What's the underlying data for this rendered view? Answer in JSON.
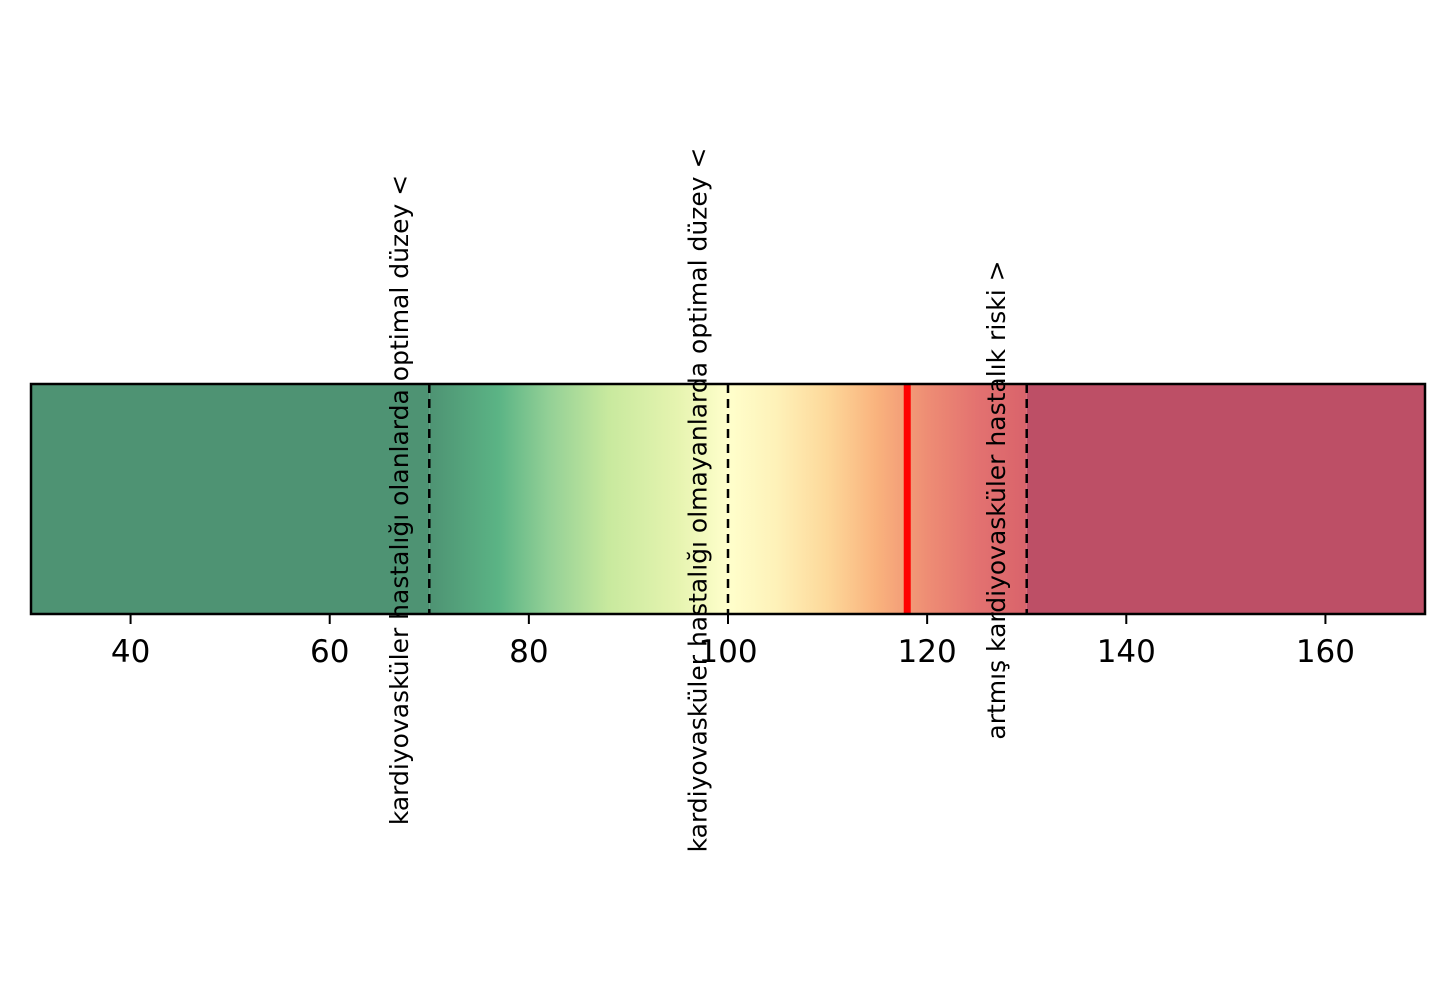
{
  "chart_data": {
    "type": "range_bar",
    "title": "",
    "xlabel": "",
    "ylabel": "",
    "xlim": [
      30,
      170
    ],
    "x_ticks": [
      40,
      60,
      80,
      100,
      120,
      140,
      160
    ],
    "grid": false,
    "legend": "none",
    "gradient": {
      "range": [
        70,
        130
      ],
      "stops": [
        {
          "value": 70,
          "color": "#4E9373"
        },
        {
          "value": 77,
          "color": "#5BB485"
        },
        {
          "value": 82,
          "color": "#93D096"
        },
        {
          "value": 88,
          "color": "#C8E99E"
        },
        {
          "value": 95,
          "color": "#E6F4B0"
        },
        {
          "value": 100,
          "color": "#FFFFCC"
        },
        {
          "value": 105,
          "color": "#FEF1B8"
        },
        {
          "value": 110,
          "color": "#FDD89A"
        },
        {
          "value": 115,
          "color": "#F9B27D"
        },
        {
          "value": 120,
          "color": "#EE8D74"
        },
        {
          "value": 125,
          "color": "#E37270"
        },
        {
          "value": 130,
          "color": "#D9636B"
        }
      ],
      "low_color": "#4E9373",
      "high_color": "#BD4F66"
    },
    "thresholds": [
      {
        "value": 70,
        "label": "kardiyovasküler hastalığı olanlarda optimal düzey <"
      },
      {
        "value": 100,
        "label": "kardiyovasküler hastalığı olmayanlarda optimal düzey <"
      },
      {
        "value": 130,
        "label": "artmış kardiyovasküler hastalık riski >"
      }
    ],
    "marker": {
      "value": 118,
      "color": "#FF0000"
    }
  }
}
